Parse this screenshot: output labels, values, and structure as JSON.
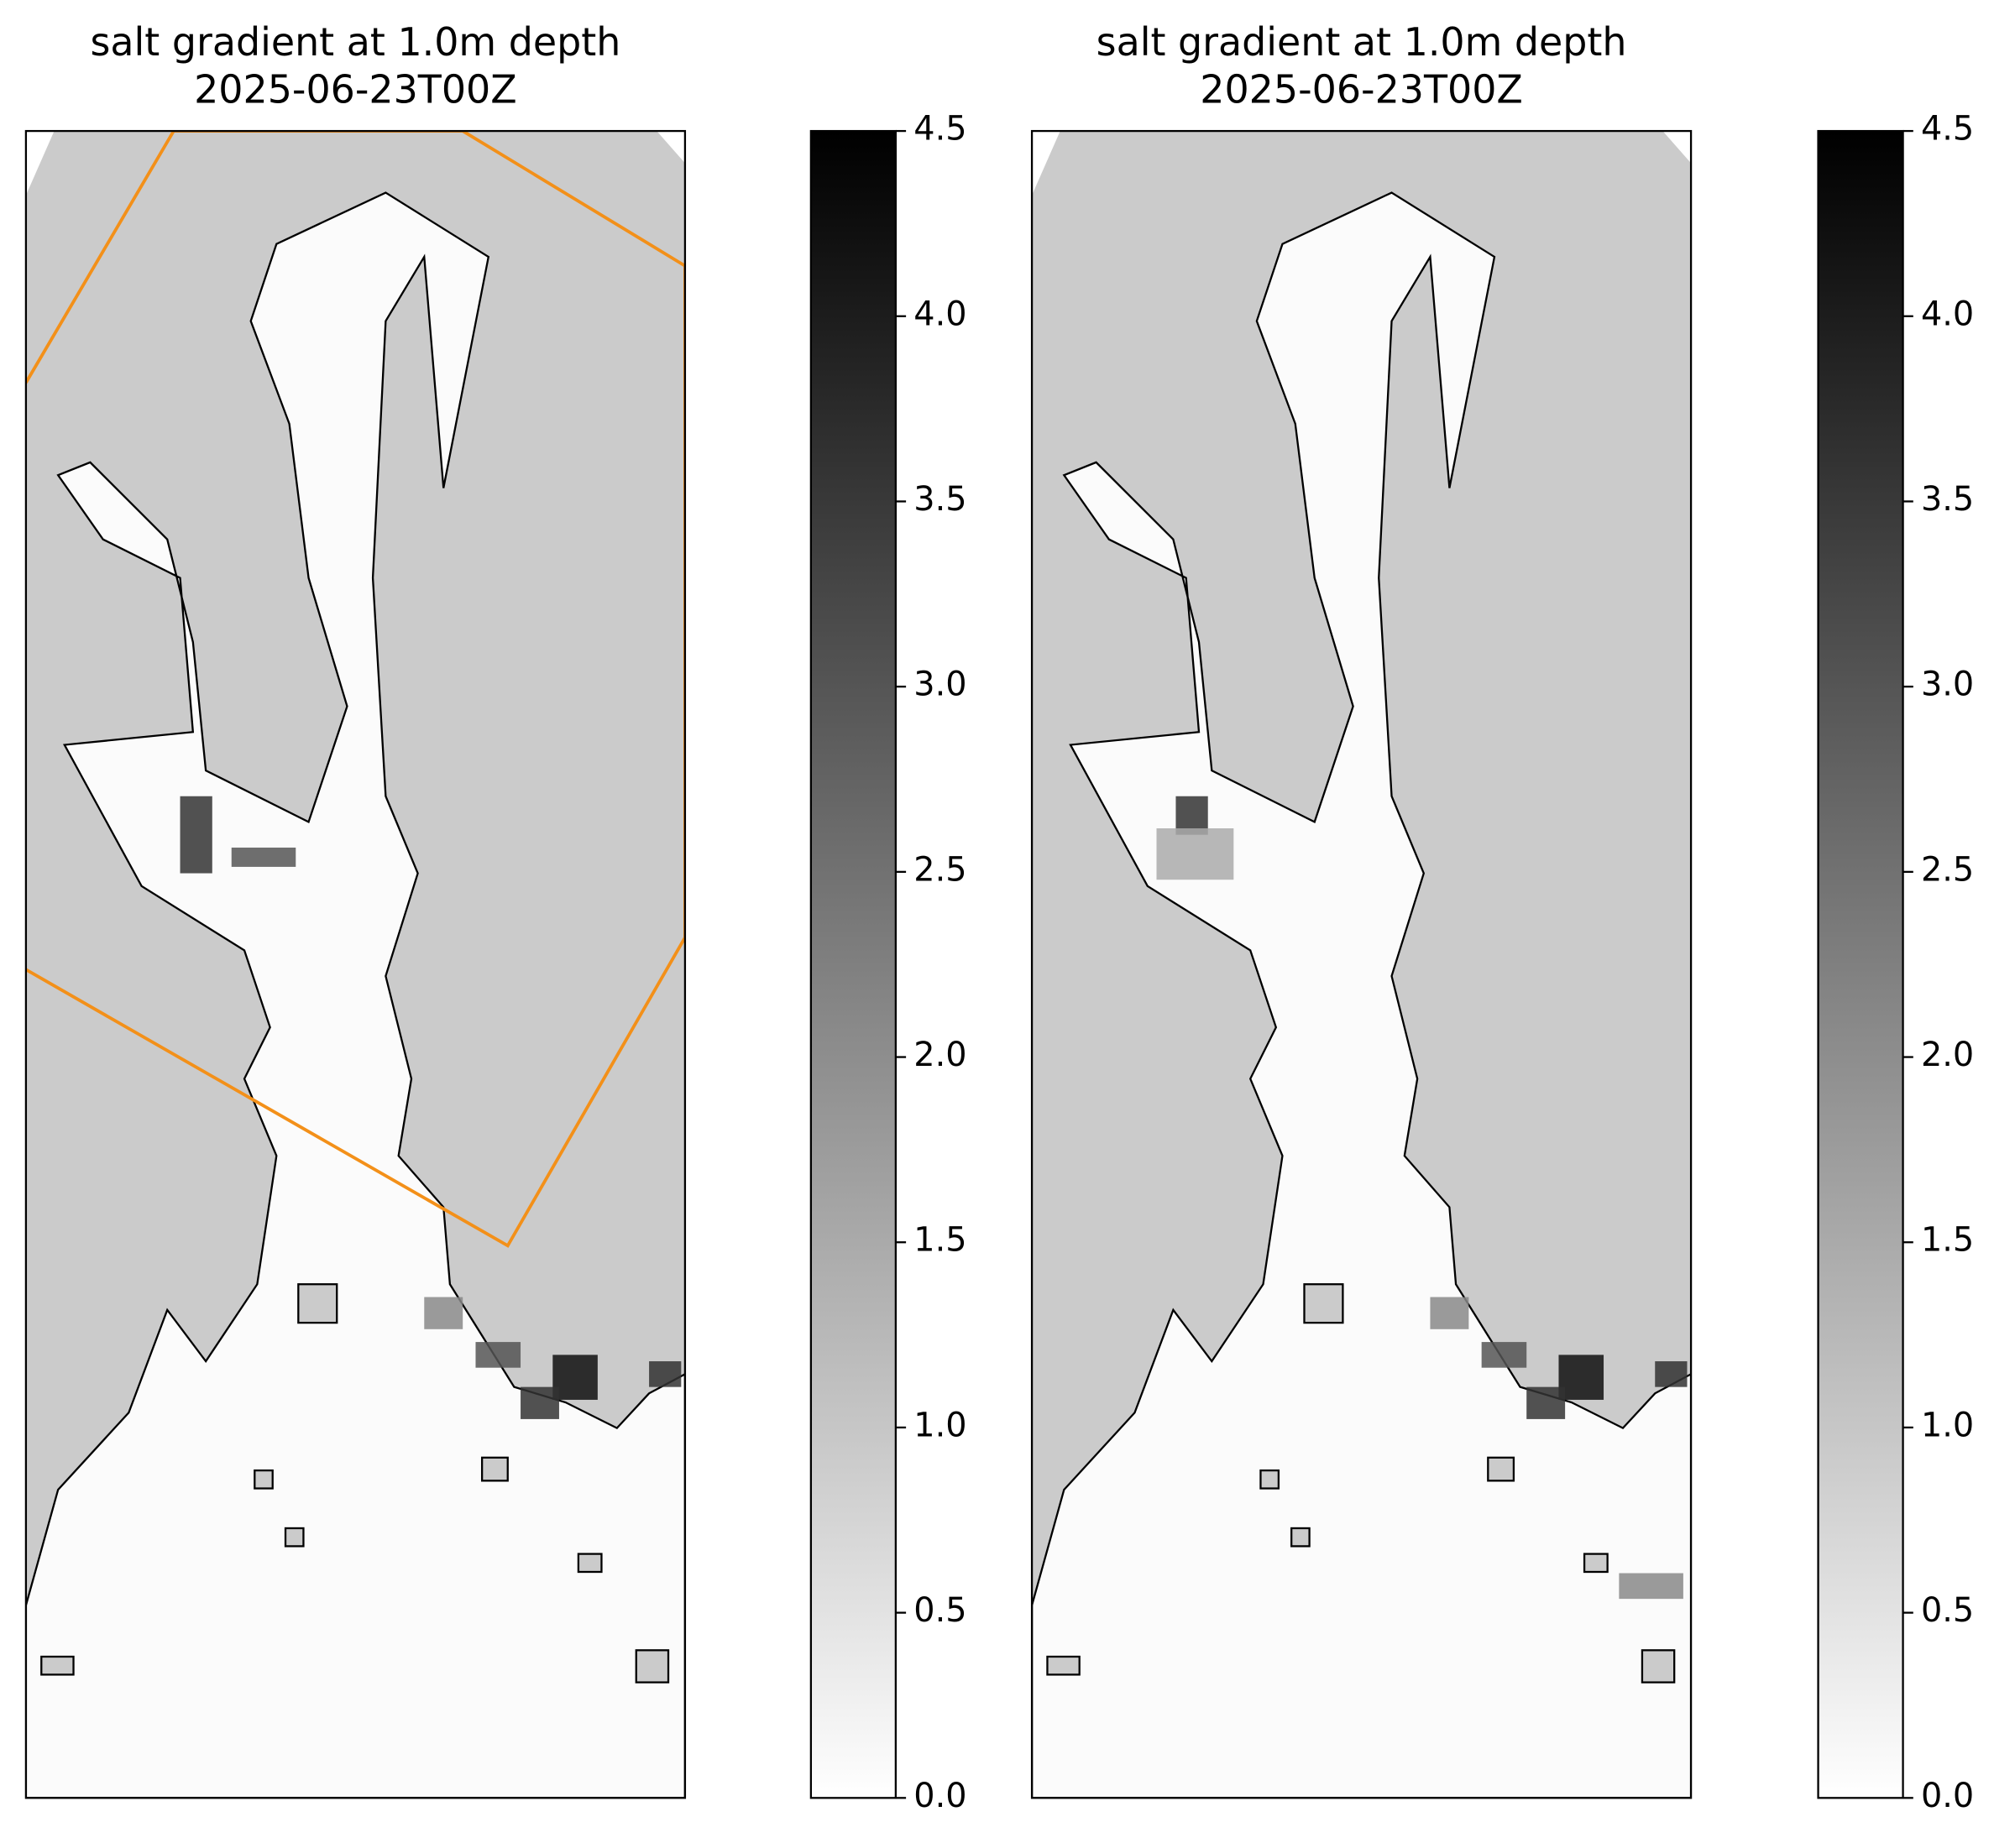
{
  "chart_data": [
    {
      "type": "map",
      "title": "salt gradient at 1.0m depth",
      "subtitle": "2025-06-23T00Z",
      "colorbar_lim": [
        0,
        4.5
      ],
      "colorbar_ticks": [
        {
          "value": 0,
          "label": "0.0"
        },
        0.5,
        {
          "value": 1,
          "label": "1.0"
        },
        1.5,
        {
          "value": 2,
          "label": "2.0"
        },
        2.5,
        {
          "value": 3,
          "label": "3.0"
        },
        3.5,
        {
          "value": 4,
          "label": "4.0"
        },
        4.5
      ],
      "colormap": [
        "#ffffff",
        "#000000"
      ],
      "land_color": "#cbcbcb",
      "outline_color": "#000000",
      "box_color": "#f39019",
      "box": true
    },
    {
      "type": "map",
      "title": "salt gradient at 1.0m depth",
      "subtitle": "2025-06-23T00Z",
      "colorbar_lim": [
        0,
        4.5
      ],
      "colorbar_ticks": [
        {
          "value": 0,
          "label": "0.0"
        },
        0.5,
        {
          "value": 1,
          "label": "1.0"
        },
        1.5,
        {
          "value": 2,
          "label": "2.0"
        },
        2.5,
        {
          "value": 3,
          "label": "3.0"
        },
        3.5,
        {
          "value": 4,
          "label": "4.0"
        },
        4.5
      ],
      "colormap": [
        "#ffffff",
        "#000000"
      ],
      "land_color": "#cbcbcb",
      "outline_color": "#000000",
      "box_color": "#f39019",
      "box": false
    }
  ]
}
